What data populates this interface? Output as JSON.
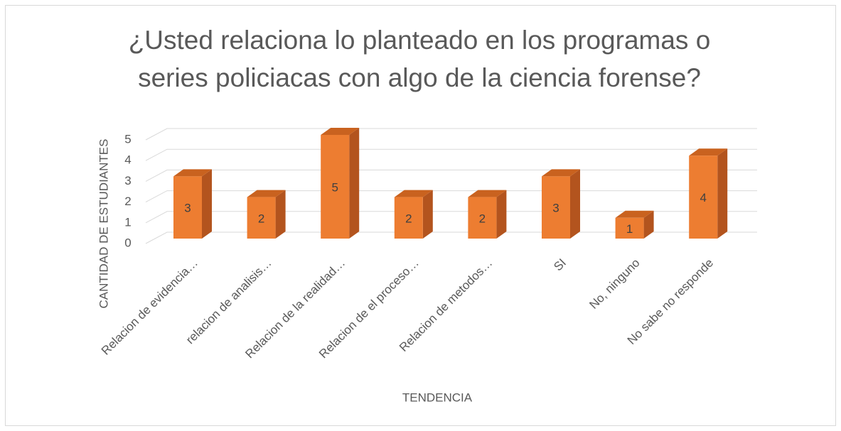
{
  "chart_data": {
    "type": "bar3d",
    "title": "¿Usted relaciona lo planteado en los programas o series policiacas con algo de la ciencia forense?",
    "x_label": "TENDENCIA",
    "y_label": "CANTIDAD  DE ESTUDIANTES",
    "categories": [
      "Relacion de evidencia…",
      "relacion de analisis…",
      "Relacion de la realidad…",
      "Relacion de el proceso…",
      "Relacion de metodos…",
      "SI",
      "No, ninguno",
      "No sabe no responde"
    ],
    "values": [
      3,
      2,
      5,
      2,
      2,
      3,
      1,
      4
    ],
    "color": "#ed7d31",
    "ylim": [
      0,
      5
    ],
    "yticks": [
      0,
      1,
      2,
      3,
      4,
      5
    ],
    "grid": true
  }
}
